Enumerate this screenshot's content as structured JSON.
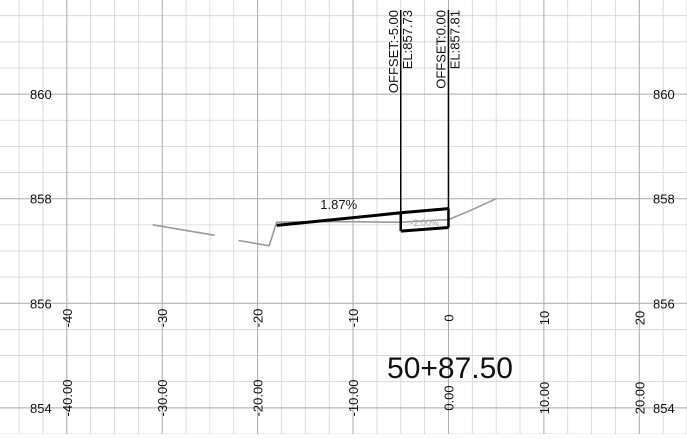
{
  "station_label": "50+87.50",
  "elevation_labels_left": [
    "860",
    "858",
    "856",
    "854"
  ],
  "elevation_labels_right": [
    "860",
    "858",
    "856",
    "854"
  ],
  "offset_tick_labels": [
    "-40",
    "-30",
    "-20",
    "-10",
    "0",
    "10",
    "20"
  ],
  "offset_value_labels": [
    "-40.00",
    "-30.00",
    "-20.00",
    "-10.00",
    "0.00",
    "10.00",
    "20.00"
  ],
  "callouts": [
    {
      "offset_text": "OFFSET:-5.00",
      "elev_text": "EL:857.73",
      "offset": -5.0,
      "elevation": 857.73
    },
    {
      "offset_text": "OFFSET:0.00",
      "elev_text": "EL:857.81",
      "offset": 0.0,
      "elevation": 857.81
    }
  ],
  "slope_label": "1.87%",
  "small_slope_label": "-2.00%",
  "chart_data": {
    "type": "line",
    "title": "",
    "xlabel": "",
    "ylabel": "",
    "xlim": [
      -47,
      25
    ],
    "ylim": [
      853.5,
      861.8
    ],
    "grid": true,
    "series": [
      {
        "name": "",
        "x": [
          -31,
          -24.5
        ],
        "y": [
          857.5,
          857.3
        ]
      },
      {
        "name": "",
        "x": [
          -22,
          -18.8,
          -18,
          -14,
          -10,
          -6,
          -5,
          0,
          2,
          5
        ],
        "y": [
          857.2,
          857.1,
          857.55,
          857.56,
          857.56,
          857.55,
          857.55,
          857.6,
          857.75,
          858.0
        ]
      },
      {
        "name": "",
        "x": [
          -18,
          -5,
          0
        ],
        "y": [
          857.49,
          857.73,
          857.81
        ]
      },
      {
        "name": "",
        "x": [
          -5,
          0
        ],
        "y": [
          857.38,
          857.45
        ]
      }
    ]
  }
}
